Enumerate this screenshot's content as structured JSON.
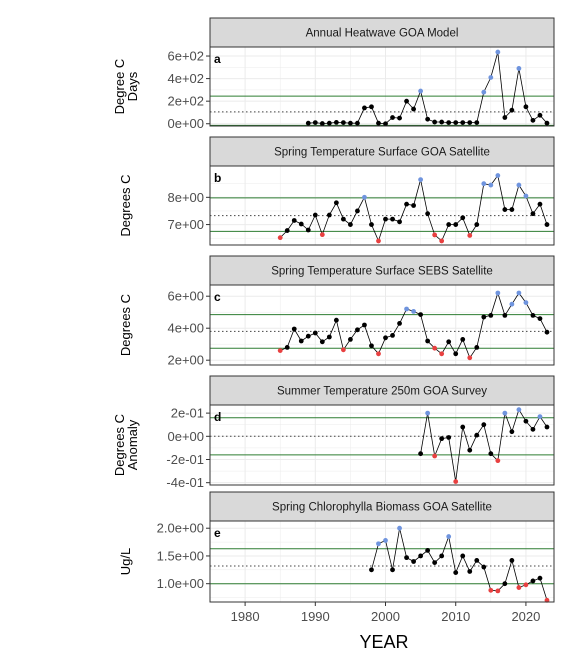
{
  "figure": {
    "xlabel": "YEAR"
  },
  "chart_data": [
    {
      "type": "line",
      "panel_letter": "a",
      "strip_title": "Annual Heatwave GOA Model",
      "ylabel_lines": [
        "Degree C",
        "Days"
      ],
      "ylim": [
        -20,
        680
      ],
      "yticks": [
        0,
        200,
        400,
        600
      ],
      "ytick_labels": [
        "0e+00",
        "2e+02",
        "4e+02",
        "6e+02"
      ],
      "xlim": [
        1975,
        2024
      ],
      "xticks": [
        1980,
        1990,
        2000,
        2010,
        2020
      ],
      "mean_line": 105,
      "sd_lines": [
        -15,
        245
      ],
      "x": [
        1989,
        1990,
        1991,
        1992,
        1993,
        1994,
        1995,
        1996,
        1997,
        1998,
        1999,
        2000,
        2001,
        2002,
        2003,
        2004,
        2005,
        2006,
        2007,
        2008,
        2009,
        2010,
        2011,
        2012,
        2013,
        2014,
        2015,
        2016,
        2017,
        2018,
        2019,
        2020,
        2021,
        2022,
        2023
      ],
      "y": [
        5,
        10,
        2,
        5,
        12,
        10,
        5,
        5,
        140,
        150,
        5,
        0,
        55,
        50,
        200,
        130,
        290,
        40,
        15,
        15,
        10,
        10,
        10,
        10,
        10,
        280,
        410,
        635,
        55,
        120,
        490,
        150,
        30,
        75,
        5
      ],
      "point_colors": {
        "high": "#6f94de",
        "low": "#e84040",
        "normal": "#000000"
      },
      "high_points": [
        2005,
        2014,
        2015,
        2016,
        2019
      ],
      "low_points": []
    },
    {
      "type": "line",
      "panel_letter": "b",
      "strip_title": "Spring Temperature Surface GOA Satellite",
      "ylabel_lines": [
        "Degrees C"
      ],
      "ylim": [
        6.25,
        9.15
      ],
      "yticks": [
        7,
        8
      ],
      "ytick_labels": [
        "7e+00",
        "8e+00"
      ],
      "xlim": [
        1975,
        2024
      ],
      "xticks": [
        1980,
        1990,
        2000,
        2010,
        2020
      ],
      "mean_line": 7.33,
      "sd_lines": [
        6.75,
        7.98
      ],
      "x": [
        1985,
        1986,
        1987,
        1988,
        1989,
        1990,
        1991,
        1992,
        1993,
        1994,
        1995,
        1996,
        1997,
        1998,
        1999,
        2000,
        2001,
        2002,
        2003,
        2004,
        2005,
        2006,
        2007,
        2008,
        2009,
        2010,
        2011,
        2012,
        2013,
        2014,
        2015,
        2016,
        2017,
        2018,
        2019,
        2020,
        2021,
        2022,
        2023
      ],
      "y": [
        6.52,
        6.78,
        7.15,
        7.02,
        6.8,
        7.35,
        6.63,
        7.35,
        7.8,
        7.2,
        7.0,
        7.5,
        8.0,
        7.0,
        6.4,
        7.2,
        7.2,
        7.1,
        7.75,
        7.7,
        8.65,
        7.4,
        6.62,
        6.4,
        7.0,
        7.0,
        7.25,
        6.6,
        7.0,
        8.5,
        8.45,
        8.8,
        7.55,
        7.55,
        8.45,
        8.05,
        7.4,
        7.75,
        7.0
      ],
      "high_points": [
        1997,
        2005,
        2014,
        2015,
        2016,
        2019,
        2020
      ],
      "low_points": [
        1985,
        1991,
        1999,
        2007,
        2008,
        2012
      ]
    },
    {
      "type": "line",
      "panel_letter": "c",
      "strip_title": "Spring Temperature Surface SEBS Satellite",
      "ylabel_lines": [
        "Degrees C"
      ],
      "ylim": [
        1.7,
        6.7
      ],
      "yticks": [
        2,
        4,
        6
      ],
      "ytick_labels": [
        "2e+00",
        "4e+00",
        "6e+00"
      ],
      "xlim": [
        1975,
        2024
      ],
      "xticks": [
        1980,
        1990,
        2000,
        2010,
        2020
      ],
      "mean_line": 3.8,
      "sd_lines": [
        2.75,
        4.85
      ],
      "x": [
        1985,
        1986,
        1987,
        1988,
        1989,
        1990,
        1991,
        1992,
        1993,
        1994,
        1995,
        1996,
        1997,
        1998,
        1999,
        2000,
        2001,
        2002,
        2003,
        2004,
        2005,
        2006,
        2007,
        2008,
        2009,
        2010,
        2011,
        2012,
        2013,
        2014,
        2015,
        2016,
        2017,
        2018,
        2019,
        2020,
        2021,
        2022,
        2023
      ],
      "y": [
        2.6,
        2.8,
        3.95,
        3.2,
        3.5,
        3.7,
        3.15,
        3.45,
        4.5,
        2.65,
        3.3,
        3.9,
        4.2,
        2.9,
        2.4,
        3.4,
        3.55,
        4.3,
        5.2,
        5.05,
        4.85,
        3.2,
        2.75,
        2.4,
        3.15,
        2.4,
        3.3,
        2.15,
        2.8,
        4.7,
        4.8,
        6.2,
        4.8,
        5.5,
        6.2,
        5.6,
        4.8,
        4.6,
        3.75
      ],
      "high_points": [
        2003,
        2004,
        2016,
        2018,
        2019,
        2020
      ],
      "low_points": [
        1985,
        1994,
        1999,
        2007,
        2008,
        2012
      ]
    },
    {
      "type": "line",
      "panel_letter": "d",
      "strip_title": "Summer Temperature 250m GOA Survey",
      "ylabel_lines": [
        "Degrees C",
        "Anomaly"
      ],
      "ylim": [
        -0.42,
        0.27
      ],
      "yticks": [
        -0.4,
        -0.2,
        0,
        0.2
      ],
      "ytick_labels": [
        "-4e-01",
        "-2e-01",
        "0e+00",
        "2e-01"
      ],
      "xlim": [
        1975,
        2024
      ],
      "xticks": [
        1980,
        1990,
        2000,
        2010,
        2020
      ],
      "mean_line": 0.0,
      "sd_lines": [
        -0.16,
        0.16
      ],
      "x": [
        2005,
        2006,
        2007,
        2008,
        2009,
        2010,
        2011,
        2012,
        2013,
        2014,
        2015,
        2016,
        2017,
        2018,
        2019,
        2020,
        2021,
        2022,
        2023
      ],
      "y": [
        -0.15,
        0.2,
        -0.17,
        -0.02,
        -0.01,
        -0.39,
        0.08,
        -0.12,
        0.01,
        0.1,
        -0.15,
        -0.21,
        0.2,
        0.04,
        0.23,
        0.13,
        0.06,
        0.17,
        0.08
      ],
      "high_points": [
        2006,
        2017,
        2019,
        2022
      ],
      "low_points": [
        2007,
        2010,
        2016
      ]
    },
    {
      "type": "line",
      "panel_letter": "e",
      "strip_title": "Spring Chlorophylla Biomass GOA Satellite",
      "ylabel_lines": [
        "Ug/L"
      ],
      "ylim": [
        0.67,
        2.13
      ],
      "yticks": [
        1.0,
        1.5,
        2.0
      ],
      "ytick_labels": [
        "1.0e+00",
        "1.5e+00",
        "2.0e+00"
      ],
      "xlim": [
        1975,
        2024
      ],
      "xticks": [
        1980,
        1990,
        2000,
        2010,
        2020
      ],
      "mean_line": 1.32,
      "sd_lines": [
        1.0,
        1.63
      ],
      "x": [
        1998,
        1999,
        2000,
        2001,
        2002,
        2003,
        2004,
        2005,
        2006,
        2007,
        2008,
        2009,
        2010,
        2011,
        2012,
        2013,
        2014,
        2015,
        2016,
        2017,
        2018,
        2019,
        2020,
        2021,
        2022,
        2023
      ],
      "y": [
        1.25,
        1.72,
        1.78,
        1.25,
        2.0,
        1.47,
        1.4,
        1.5,
        1.6,
        1.38,
        1.5,
        1.85,
        1.2,
        1.5,
        1.22,
        1.42,
        1.3,
        0.88,
        0.87,
        1.0,
        1.42,
        0.93,
        0.98,
        1.05,
        1.1,
        0.7
      ],
      "high_points": [
        1999,
        2000,
        2002,
        2009
      ],
      "low_points": [
        2015,
        2016,
        2019,
        2020,
        2023
      ]
    }
  ]
}
